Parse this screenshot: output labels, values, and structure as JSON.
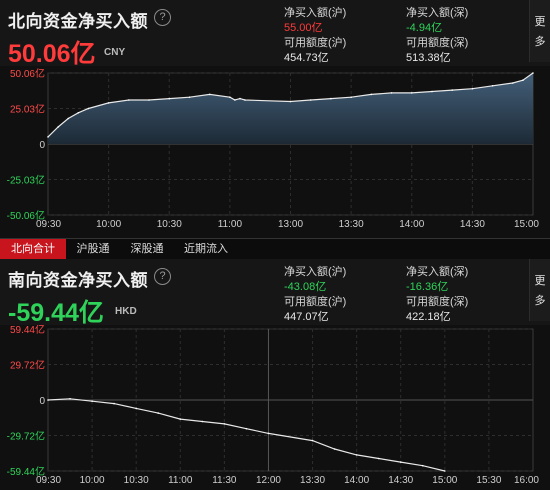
{
  "north": {
    "title": "北向资金净买入额",
    "help_icon": "?",
    "value": "50.06亿",
    "unit": "CNY",
    "value_color": "#ff3b3b",
    "stats": {
      "sh_buy_label": "净买入额(沪)",
      "sh_buy_value": "55.00亿",
      "sz_buy_label": "净买入额(深)",
      "sz_buy_value": "-4.94亿",
      "sh_quota_label": "可用额度(沪)",
      "sh_quota_value": "454.73亿",
      "sz_quota_label": "可用额度(深)",
      "sz_quota_value": "513.38亿"
    },
    "more_label_1": "更",
    "more_label_2": "多"
  },
  "tabs": [
    "北向合计",
    "沪股通",
    "深股通",
    "近期流入"
  ],
  "active_tab": 0,
  "south": {
    "title": "南向资金净买入额",
    "help_icon": "?",
    "value": "-59.44亿",
    "unit": "HKD",
    "value_color": "#2fd35a",
    "stats": {
      "sh_buy_label": "净买入额(沪)",
      "sh_buy_value": "-43.08亿",
      "sz_buy_label": "净买入额(深)",
      "sz_buy_value": "-16.36亿",
      "sh_quota_label": "可用额度(沪)",
      "sh_quota_value": "447.07亿",
      "sz_quota_label": "可用额度(深)",
      "sz_quota_value": "422.18亿"
    },
    "more_label_1": "更",
    "more_label_2": "多"
  },
  "chart_data": [
    {
      "type": "area",
      "ylabel_unit": "亿",
      "y_ticks": [
        "50.06亿",
        "25.03亿",
        "0",
        "-25.03亿",
        "-50.06亿"
      ],
      "ylim": [
        -50.06,
        50.06
      ],
      "x_ticks": [
        "09:30",
        "10:00",
        "10:30",
        "11:00",
        "13:00",
        "13:30",
        "14:00",
        "14:30",
        "15:00"
      ],
      "grid": true,
      "series": [
        {
          "x": [
            "09:30",
            "09:35",
            "09:40",
            "09:45",
            "09:50",
            "10:00",
            "10:10",
            "10:20",
            "10:30",
            "10:40",
            "10:50",
            "11:00",
            "11:10",
            "11:20",
            "11:30",
            "13:00",
            "13:10",
            "13:20",
            "13:30",
            "13:40",
            "13:50",
            "14:00",
            "14:10",
            "14:20",
            "14:30",
            "14:40",
            "14:50",
            "14:55",
            "15:00"
          ],
          "values": [
            5,
            12,
            18,
            22,
            25,
            29,
            31,
            31,
            32,
            33,
            35,
            33,
            31,
            32,
            31,
            30,
            31,
            32,
            33,
            35,
            36,
            36,
            37,
            38,
            39,
            41,
            43,
            45,
            50.06
          ]
        }
      ]
    },
    {
      "type": "line",
      "ylabel_unit": "亿",
      "y_ticks": [
        "59.44亿",
        "29.72亿",
        "0",
        "-29.72亿",
        "-59.44亿"
      ],
      "ylim": [
        -59.44,
        59.44
      ],
      "x_ticks": [
        "09:30",
        "10:00",
        "10:30",
        "11:00",
        "11:30",
        "12:00",
        "13:30",
        "14:00",
        "14:30",
        "15:00",
        "15:30",
        "16:00"
      ],
      "grid": true,
      "series": [
        {
          "x": [
            "09:30",
            "09:45",
            "10:00",
            "10:15",
            "10:30",
            "10:45",
            "11:00",
            "11:15",
            "11:30",
            "11:45",
            "12:00",
            "13:30",
            "13:45",
            "14:00",
            "14:15",
            "14:30",
            "14:45",
            "15:00"
          ],
          "values": [
            0,
            1,
            -1,
            -3,
            -7,
            -11,
            -16,
            -18,
            -20,
            -24,
            -28,
            -34,
            -41,
            -46,
            -49,
            -52,
            -55,
            -59.44
          ]
        }
      ]
    }
  ]
}
